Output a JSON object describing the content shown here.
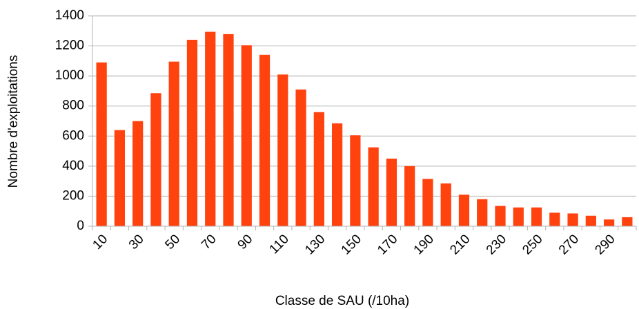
{
  "chart_data": {
    "type": "bar",
    "x_label": "Classe de SAU (/10ha)",
    "y_label": "Nombre d'exploitations",
    "categories": [
      10,
      null,
      30,
      null,
      50,
      null,
      70,
      null,
      90,
      null,
      110,
      null,
      130,
      null,
      150,
      null,
      170,
      null,
      190,
      null,
      210,
      null,
      230,
      null,
      250,
      null,
      270,
      null,
      290,
      null
    ],
    "values": [
      1090,
      640,
      700,
      885,
      1095,
      1240,
      1295,
      1280,
      1205,
      1140,
      1010,
      910,
      760,
      685,
      605,
      525,
      450,
      400,
      315,
      285,
      210,
      180,
      135,
      125,
      125,
      90,
      85,
      70,
      45,
      60
    ],
    "color": "#ff420e",
    "ylim": [
      0,
      1400
    ],
    "yticks": [
      0,
      200,
      400,
      600,
      800,
      1000,
      1200,
      1400
    ],
    "grid": true
  }
}
